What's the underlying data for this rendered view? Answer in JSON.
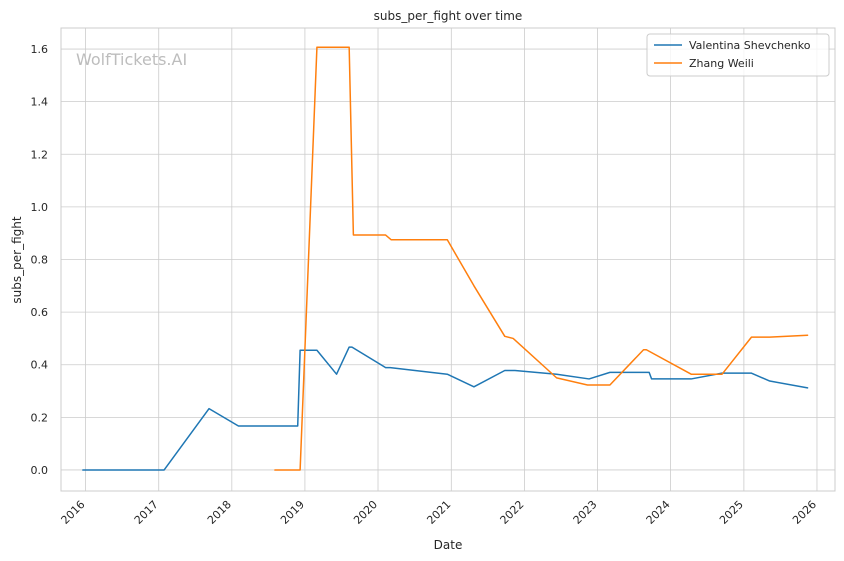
{
  "chart_data": {
    "type": "line",
    "title": "subs_per_fight over time",
    "xlabel": "Date",
    "ylabel": "subs_per_fight",
    "watermark": "WolfTickets.AI",
    "xlim": [
      "2015-09-01",
      "2026-04-01"
    ],
    "ylim": [
      -0.08,
      1.68
    ],
    "x_ticks": [
      "2016-01-01",
      "2017-01-01",
      "2018-01-01",
      "2019-01-01",
      "2020-01-01",
      "2021-01-01",
      "2022-01-01",
      "2023-01-01",
      "2024-01-01",
      "2025-01-01",
      "2026-01-01"
    ],
    "x_tick_labels": [
      "2016",
      "2017",
      "2018",
      "2019",
      "2020",
      "2021",
      "2022",
      "2023",
      "2024",
      "2025",
      "2026"
    ],
    "y_ticks": [
      0,
      0.2,
      0.4,
      0.6,
      0.8,
      1.0,
      1.2,
      1.4,
      1.6
    ],
    "y_tick_labels": [
      "0.0",
      "0.2",
      "0.4",
      "0.6",
      "0.8",
      "1.0",
      "1.2",
      "1.4",
      "1.6"
    ],
    "grid": true,
    "legend_position": "top-right",
    "series": [
      {
        "name": "Valentina Shevchenko",
        "color": "#1f77b4",
        "x": [
          "2015-12-19",
          "2017-01-28",
          "2017-09-09",
          "2018-02-03",
          "2018-11-26",
          "2018-12-08",
          "2019-03-02",
          "2019-06-08",
          "2019-08-10",
          "2019-08-24",
          "2020-02-08",
          "2020-03-02",
          "2020-12-12",
          "2021-04-24",
          "2021-09-25",
          "2021-11-15",
          "2022-06-11",
          "2022-11-20",
          "2023-03-04",
          "2023-09-16",
          "2023-09-28",
          "2024-04-13",
          "2024-09-14",
          "2025-02-08",
          "2025-05-10",
          "2025-11-15"
        ],
        "y": [
          0.0,
          0.0,
          0.233,
          0.167,
          0.167,
          0.455,
          0.455,
          0.364,
          0.467,
          0.467,
          0.389,
          0.389,
          0.364,
          0.316,
          0.378,
          0.378,
          0.364,
          0.346,
          0.371,
          0.371,
          0.346,
          0.346,
          0.368,
          0.368,
          0.338,
          0.312
        ]
      },
      {
        "name": "Zhang Weili",
        "color": "#ff7f0e",
        "x": [
          "2018-08-04",
          "2018-12-08",
          "2019-03-02",
          "2019-08-10",
          "2019-08-31",
          "2020-02-08",
          "2020-03-07",
          "2020-12-12",
          "2021-04-24",
          "2021-09-25",
          "2021-11-06",
          "2022-06-11",
          "2022-11-12",
          "2023-03-04",
          "2023-08-19",
          "2023-09-02",
          "2024-04-13",
          "2024-09-14",
          "2025-02-08",
          "2025-05-10",
          "2025-11-15"
        ],
        "y": [
          0.0,
          0.0,
          1.607,
          1.607,
          0.893,
          0.893,
          0.875,
          0.875,
          0.7,
          0.508,
          0.5,
          0.35,
          0.323,
          0.323,
          0.457,
          0.457,
          0.364,
          0.364,
          0.505,
          0.505,
          0.512
        ]
      }
    ]
  }
}
